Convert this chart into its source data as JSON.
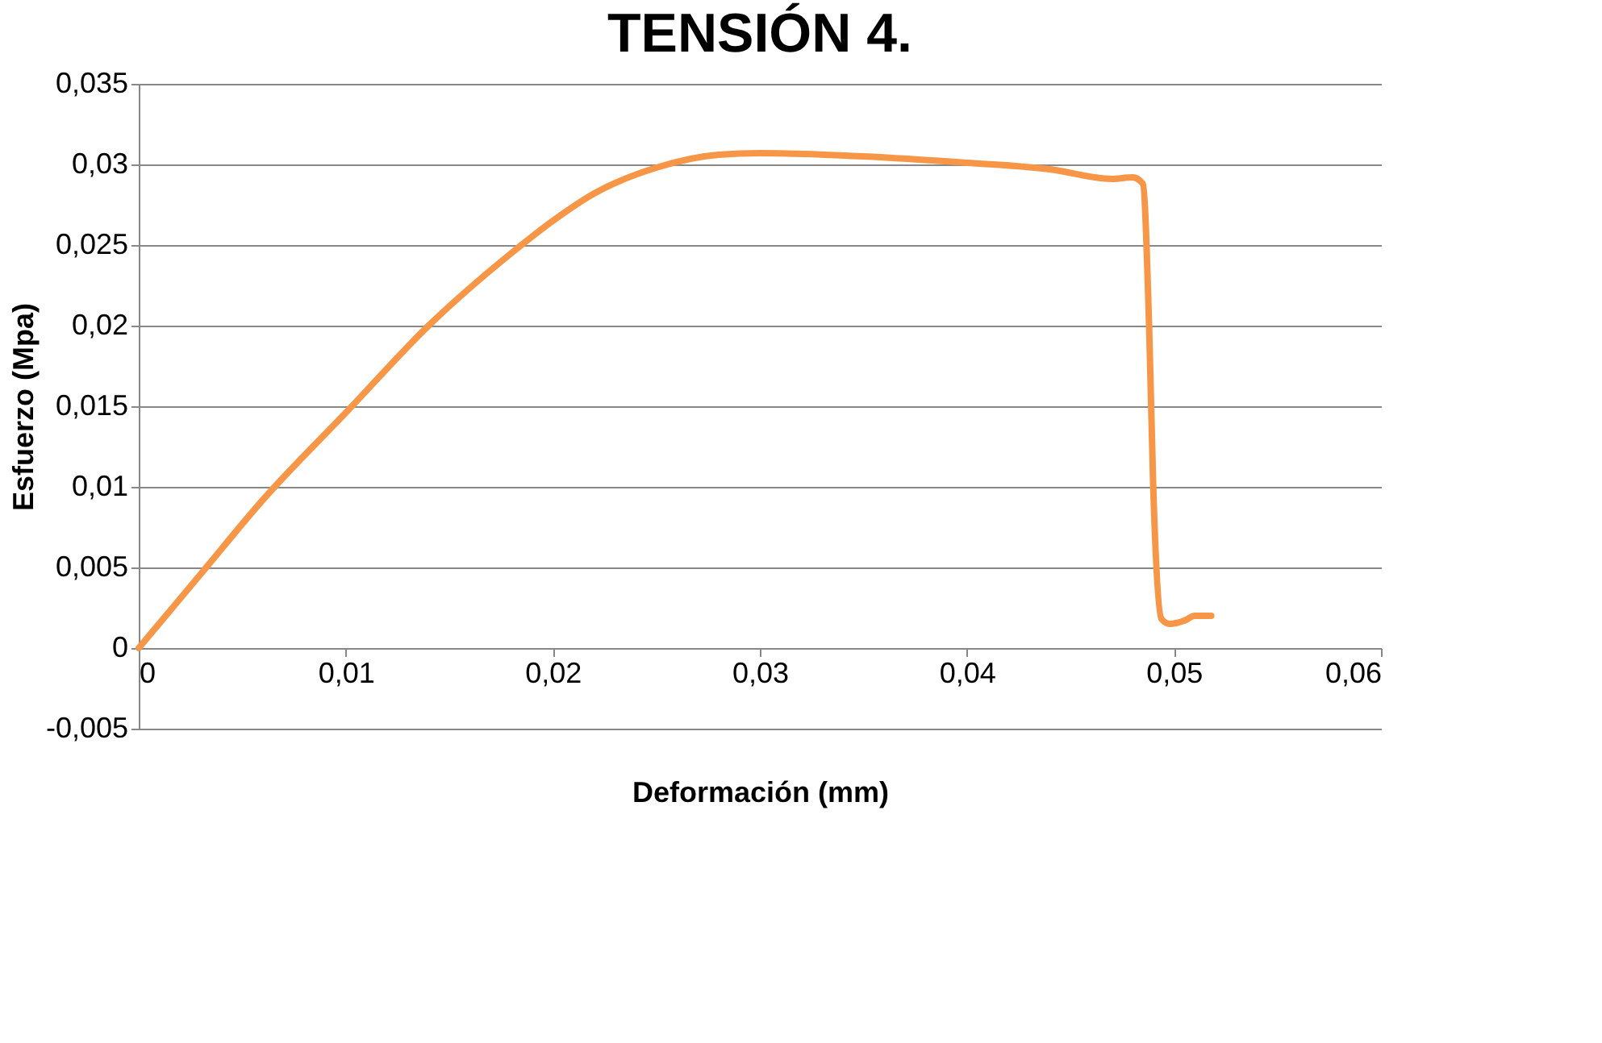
{
  "chart_data": {
    "type": "line",
    "title": "TENSIÓN 4.",
    "xlabel": "Deformación (mm)",
    "ylabel": "Esfuerzo (Mpa)",
    "xlim": [
      0,
      0.06
    ],
    "xticks": [
      {
        "value": 0,
        "label": "0"
      },
      {
        "value": 0.01,
        "label": "0,01"
      },
      {
        "value": 0.02,
        "label": "0,02"
      },
      {
        "value": 0.03,
        "label": "0,03"
      },
      {
        "value": 0.04,
        "label": "0,04"
      },
      {
        "value": 0.05,
        "label": "0,05"
      },
      {
        "value": 0.06,
        "label": "0,06"
      }
    ],
    "ylim": [
      -0.005,
      0.035
    ],
    "yticks": [
      {
        "value": -0.005,
        "label": "-0,005"
      },
      {
        "value": 0,
        "label": "0"
      },
      {
        "value": 0.005,
        "label": "0,005"
      },
      {
        "value": 0.01,
        "label": "0,01"
      },
      {
        "value": 0.015,
        "label": "0,015"
      },
      {
        "value": 0.02,
        "label": "0,02"
      },
      {
        "value": 0.025,
        "label": "0,025"
      },
      {
        "value": 0.03,
        "label": "0,03"
      },
      {
        "value": 0.035,
        "label": "0,035"
      }
    ],
    "grid": "y",
    "series": [
      {
        "color": "#f79646",
        "x": [
          0,
          0.003,
          0.006,
          0.01,
          0.014,
          0.018,
          0.02,
          0.022,
          0.025,
          0.028,
          0.03,
          0.035,
          0.04,
          0.044,
          0.047,
          0.048,
          0.0485,
          0.0488,
          0.049,
          0.0494,
          0.0498,
          0.0505,
          0.051,
          0.0518
        ],
        "values": [
          0,
          0.0046,
          0.0092,
          0.0146,
          0.02,
          0.0245,
          0.0265,
          0.0282,
          0.0298,
          0.0306,
          0.0307,
          0.0305,
          0.0301,
          0.0297,
          0.0291,
          0.0292,
          0.0288,
          0.02,
          0.01,
          0.0018,
          0.0015,
          0.0017,
          0.002,
          0.002
        ]
      }
    ]
  }
}
